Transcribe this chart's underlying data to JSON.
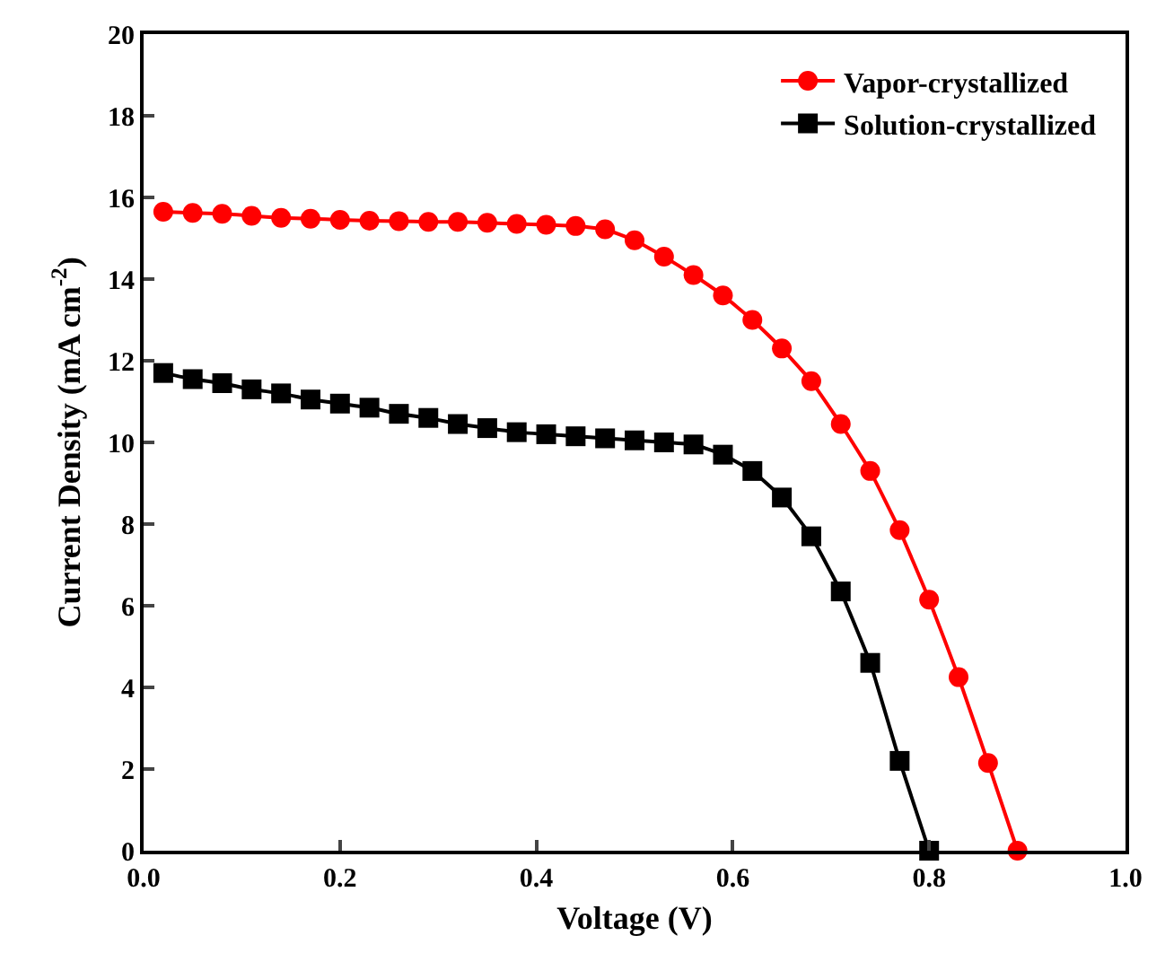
{
  "chart_data": {
    "type": "line",
    "xlabel": "Voltage (V)",
    "ylabel": "Current Density (mA cm$^{-2}$)",
    "xlim": [
      0,
      1
    ],
    "ylim": [
      0,
      20
    ],
    "xticks": [
      {
        "value": 0,
        "label": "0.0"
      },
      {
        "value": 0.2,
        "label": "0.2"
      },
      {
        "value": 0.4,
        "label": "0.4"
      },
      {
        "value": 0.6,
        "label": "0.6"
      },
      {
        "value": 0.8,
        "label": "0.8"
      },
      {
        "value": 1,
        "label": "1.0"
      }
    ],
    "yticks": [
      0,
      2,
      4,
      6,
      8,
      10,
      12,
      14,
      16,
      18,
      20
    ],
    "legend": "top right",
    "line_style": "solid",
    "series": [
      {
        "name": "Vapor-crystallized",
        "color": "#ff0000",
        "marker": "circle",
        "x": [
          0.02,
          0.05,
          0.08,
          0.11,
          0.14,
          0.17,
          0.2,
          0.23,
          0.26,
          0.29,
          0.32,
          0.35,
          0.38,
          0.41,
          0.44,
          0.47,
          0.5,
          0.53,
          0.56,
          0.59,
          0.62,
          0.65,
          0.68,
          0.71,
          0.74,
          0.77,
          0.8,
          0.83,
          0.86,
          0.89
        ],
        "values": [
          15.65,
          15.62,
          15.6,
          15.55,
          15.5,
          15.48,
          15.45,
          15.43,
          15.42,
          15.4,
          15.4,
          15.38,
          15.35,
          15.33,
          15.3,
          15.22,
          14.95,
          14.55,
          14.1,
          13.6,
          13.0,
          12.3,
          11.5,
          10.45,
          9.3,
          7.85,
          6.15,
          4.25,
          2.15,
          0
        ]
      },
      {
        "name": "Solution-crystallized",
        "color": "#000000",
        "marker": "square",
        "x": [
          0.02,
          0.05,
          0.08,
          0.11,
          0.14,
          0.17,
          0.2,
          0.23,
          0.26,
          0.29,
          0.32,
          0.35,
          0.38,
          0.41,
          0.44,
          0.47,
          0.5,
          0.53,
          0.56,
          0.59,
          0.62,
          0.65,
          0.68,
          0.71,
          0.74,
          0.77,
          0.8
        ],
        "values": [
          11.7,
          11.55,
          11.45,
          11.3,
          11.2,
          11.05,
          10.95,
          10.85,
          10.7,
          10.6,
          10.45,
          10.35,
          10.25,
          10.2,
          10.15,
          10.1,
          10.05,
          10.0,
          9.95,
          9.7,
          9.3,
          8.65,
          7.7,
          6.35,
          4.6,
          2.2,
          0
        ]
      }
    ]
  }
}
